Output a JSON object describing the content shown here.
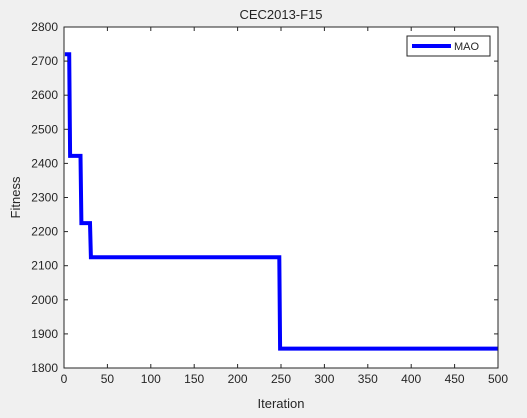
{
  "window": {
    "background": "#f0f0f0"
  },
  "chart_data": {
    "type": "line",
    "title": "CEC2013-F15",
    "xlabel": "Iteration",
    "ylabel": "Fitness",
    "xlim": [
      0,
      500
    ],
    "ylim": [
      1800,
      2800
    ],
    "xticks": [
      "0",
      "50",
      "100",
      "150",
      "200",
      "250",
      "300",
      "350",
      "400",
      "450",
      "500"
    ],
    "yticks": [
      "1800",
      "1900",
      "2000",
      "2100",
      "2200",
      "2300",
      "2400",
      "2500",
      "2600",
      "2700",
      "2800"
    ],
    "grid": false,
    "legend_position": "top-right",
    "series": [
      {
        "name": "MAO",
        "color": "#0000ff",
        "x": [
          1,
          6,
          7,
          19,
          20,
          30,
          31,
          248,
          249,
          500
        ],
        "y": [
          2720,
          2720,
          2422,
          2422,
          2225,
          2225,
          2125,
          2125,
          1857,
          1857
        ]
      }
    ]
  }
}
